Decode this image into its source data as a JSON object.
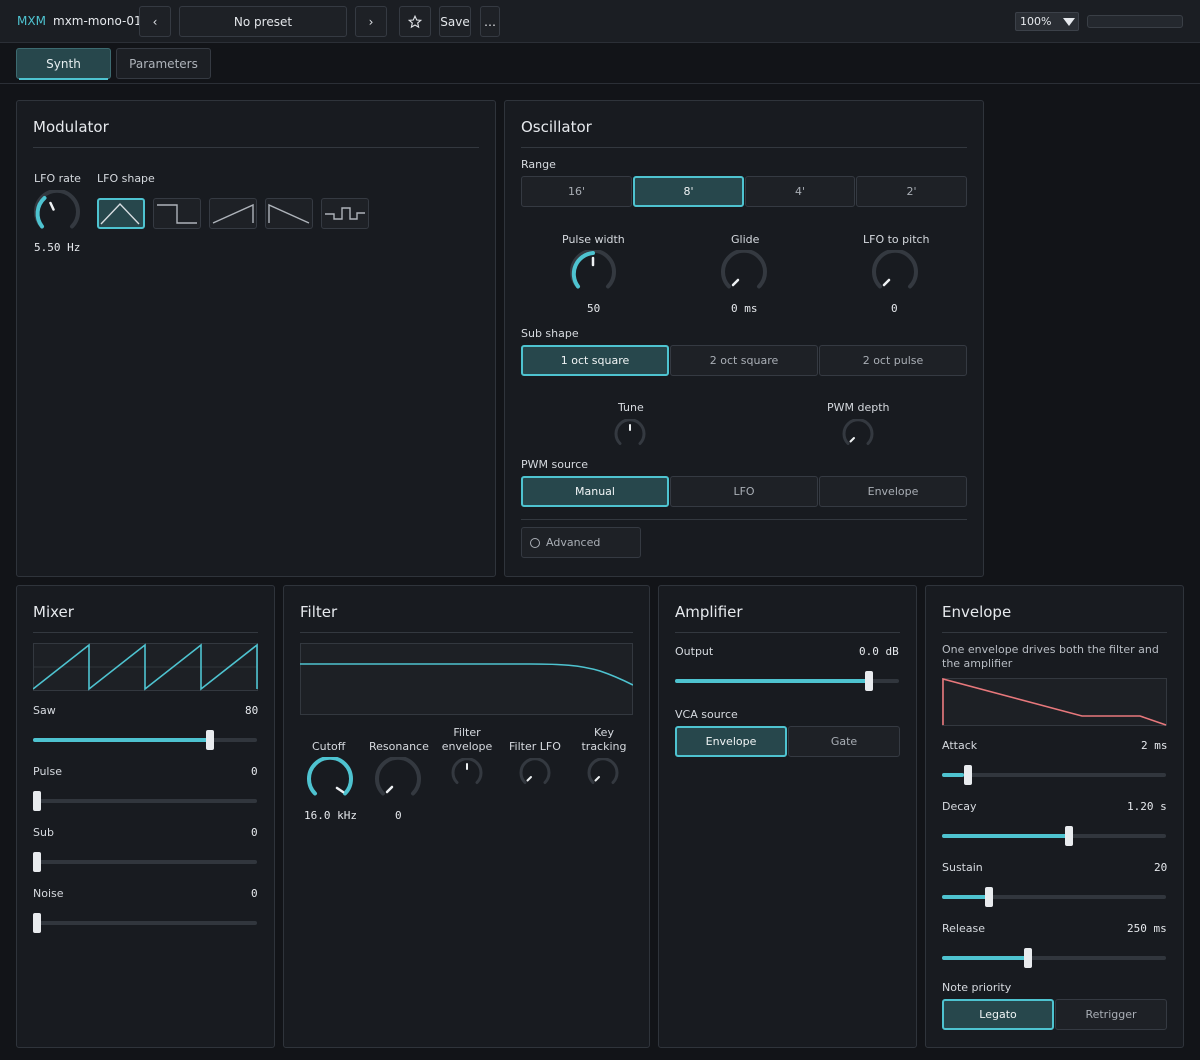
{
  "app": {
    "brand": "MXM",
    "title": "mxm-mono-01"
  },
  "toolbar": {
    "prev_glyph": "‹",
    "preset": "No preset",
    "next_glyph": "›",
    "save": "Save",
    "more": "…",
    "zoom": "100%"
  },
  "tabs": [
    {
      "label": "Synth",
      "active": true
    },
    {
      "label": "Parameters",
      "active": false
    }
  ],
  "modulator": {
    "title": "Modulator",
    "lfo_rate": {
      "label": "LFO rate",
      "value": "5.50 Hz"
    },
    "lfo_shape": {
      "label": "LFO shape",
      "options": [
        "triangle",
        "square",
        "saw-up",
        "saw-down",
        "sample-hold"
      ],
      "selected": "triangle"
    }
  },
  "oscillator": {
    "title": "Oscillator",
    "range": {
      "label": "Range",
      "options": [
        "16'",
        "8'",
        "4'",
        "2'"
      ],
      "selected": "8'"
    },
    "pulse_width": {
      "label": "Pulse width",
      "value": "50"
    },
    "glide": {
      "label": "Glide",
      "value": "0 ms"
    },
    "lfo_to_pitch": {
      "label": "LFO to pitch",
      "value": "0"
    },
    "sub_shape": {
      "label": "Sub shape",
      "options": [
        "1 oct square",
        "2 oct square",
        "2 oct pulse"
      ],
      "selected": "1 oct square"
    },
    "tune": {
      "label": "Tune"
    },
    "pwm_depth": {
      "label": "PWM depth"
    },
    "pwm_source": {
      "label": "PWM source",
      "options": [
        "Manual",
        "LFO",
        "Envelope"
      ],
      "selected": "Manual"
    },
    "advanced": "Advanced"
  },
  "mixer": {
    "title": "Mixer",
    "channels": [
      {
        "label": "Saw",
        "value": "80",
        "level": 0.8
      },
      {
        "label": "Pulse",
        "value": "0",
        "level": 0
      },
      {
        "label": "Sub",
        "value": "0",
        "level": 0
      },
      {
        "label": "Noise",
        "value": "0",
        "level": 0
      }
    ]
  },
  "filter": {
    "title": "Filter",
    "cutoff": {
      "label": "Cutoff",
      "value": "16.0 kHz"
    },
    "resonance": {
      "label": "Resonance",
      "value": "0"
    },
    "filter_envelope": {
      "label": "Filter envelope"
    },
    "filter_lfo": {
      "label": "Filter LFO"
    },
    "key_tracking": {
      "label": "Key tracking"
    }
  },
  "amplifier": {
    "title": "Amplifier",
    "output": {
      "label": "Output",
      "value": "0.0 dB",
      "level": 0.88
    },
    "vca_source": {
      "label": "VCA source",
      "options": [
        "Envelope",
        "Gate"
      ],
      "selected": "Envelope"
    }
  },
  "envelope": {
    "title": "Envelope",
    "description": "One envelope drives both the filter and the amplifier",
    "attack": {
      "label": "Attack",
      "value": "2 ms",
      "level": 0.1
    },
    "decay": {
      "label": "Decay",
      "value": "1.20 s",
      "level": 0.57
    },
    "sustain": {
      "label": "Sustain",
      "value": "20",
      "level": 0.2
    },
    "release": {
      "label": "Release",
      "value": "250 ms",
      "level": 0.38
    },
    "note_priority": {
      "label": "Note priority",
      "options": [
        "Legato",
        "Retrigger"
      ],
      "selected": "Legato"
    }
  },
  "colors": {
    "accent": "#4ec3d0",
    "envelope_curve": "#e8787c",
    "panel": "#181b20",
    "background": "#121418"
  }
}
